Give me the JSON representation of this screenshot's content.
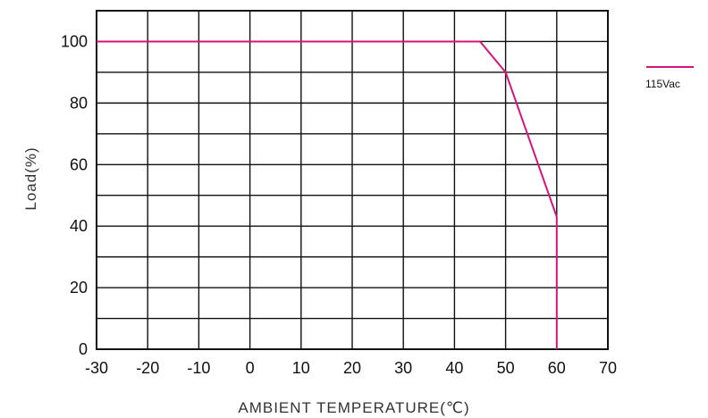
{
  "chart_data": {
    "type": "line",
    "title": "",
    "xlabel": "AMBIENT TEMPERATURE(℃)",
    "ylabel": "Load(%)",
    "xlim": [
      -30,
      70
    ],
    "ylim": [
      0,
      110
    ],
    "x_ticks": [
      -30,
      -20,
      -10,
      0,
      10,
      20,
      30,
      40,
      50,
      60,
      70
    ],
    "y_ticks": [
      0,
      20,
      40,
      60,
      80,
      100
    ],
    "x_tick_labels": [
      "-30",
      "-20",
      "-10",
      "0",
      "10",
      "20",
      "30",
      "40",
      "50",
      "60",
      "70"
    ],
    "y_tick_labels": [
      "0",
      "20",
      "40",
      "60",
      "80",
      "100"
    ],
    "grid": true,
    "legend_position": "top-right outside",
    "series": [
      {
        "name": "115Vac",
        "color": "#d4147a",
        "x": [
          -30,
          45,
          50,
          60,
          60
        ],
        "y": [
          100,
          100,
          90,
          43,
          0
        ]
      }
    ]
  }
}
